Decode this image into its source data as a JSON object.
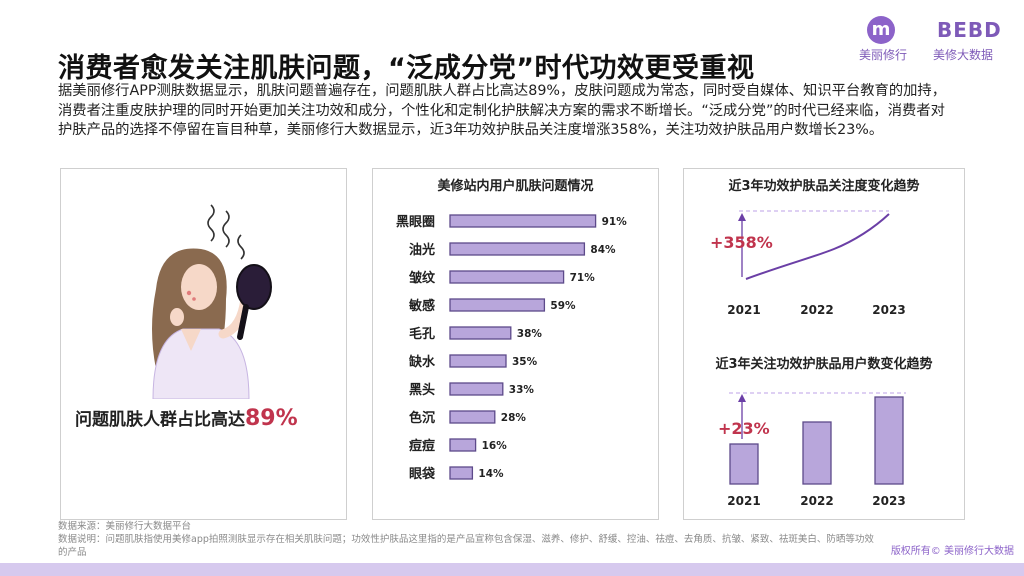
{
  "header": {
    "title": "消费者愈发关注肌肤问题，“泛成分党”时代功效更受重视",
    "logo_left_glyph": "m",
    "logo_left_text": "美丽修行",
    "logo_right_glyph": "BEBD",
    "logo_right_text": "美修大数据"
  },
  "intro": "据美丽修行APP测肤数据显示，肌肤问题普遍存在，问题肌肤人群占比高达89%，皮肤问题成为常态，同时受自媒体、知识平台教育的加持，消费者注重皮肤护理的同时开始更加关注功效和成分，个性化和定制化护肤解决方案的需求不断增长。“泛成分党”的时代已经来临，消费者对护肤产品的选择不停留在盲目种草，美丽修行大数据显示，近3年功效护肤品关注度增涨358%，关注功效护肤品用户数增长23%。",
  "left_panel": {
    "highlight_prefix": "问题肌肤人群占比高达",
    "highlight_value": "89%"
  },
  "footer": {
    "source": "数据来源：美丽修行大数据平台",
    "note": "数据说明：问题肌肤指使用美修app拍照测肤显示存在相关肌肤问题；功效性护肤品这里指的是产品宣称包含保湿、滋养、修护、舒缓、控油、祛痘、去角质、抗皱、紧致、祛斑美白、防晒等功效的产品",
    "copyright": "版权所有© 美丽修行大数据"
  },
  "colors": {
    "bar_fill": "#b8a6db",
    "bar_stroke": "#5d4a8a",
    "accent_red": "#c0344d",
    "line": "#6b3fa6",
    "dashed": "#c9b3ec",
    "bottom_bar": "#d6c9ee"
  },
  "chart_data": [
    {
      "type": "bar",
      "orientation": "horizontal",
      "title": "美修站内用户肌肤问题情况",
      "categories": [
        "黑眼圈",
        "油光",
        "皱纹",
        "敏感",
        "毛孔",
        "缺水",
        "黑头",
        "色沉",
        "痘痘",
        "眼袋"
      ],
      "values": [
        91,
        84,
        71,
        59,
        38,
        35,
        33,
        28,
        16,
        14
      ],
      "value_labels": [
        "91%",
        "84%",
        "71%",
        "59%",
        "38%",
        "35%",
        "33%",
        "28%",
        "16%",
        "14%"
      ],
      "xlim": [
        0,
        100
      ]
    },
    {
      "type": "line",
      "title": "近3年功效护肤品关注度变化趋势",
      "x": [
        "2021",
        "2022",
        "2023"
      ],
      "annotation": "+358%"
    },
    {
      "type": "bar",
      "title": "近3年关注功效护肤品用户数变化趋势",
      "categories": [
        "2021",
        "2022",
        "2023"
      ],
      "annotation": "+23%"
    }
  ]
}
